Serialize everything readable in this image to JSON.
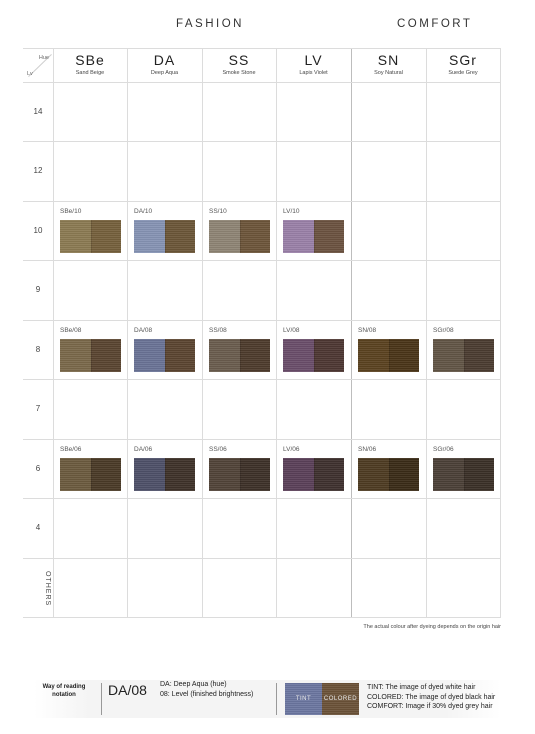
{
  "headers": {
    "fashion": "FASHION",
    "comfort": "COMFORT"
  },
  "corner": {
    "hue": "Hue",
    "lv": "Lv"
  },
  "columns": [
    {
      "code": "SBe",
      "name": "Sand Beige"
    },
    {
      "code": "DA",
      "name": "Deep Aqua"
    },
    {
      "code": "SS",
      "name": "Smoke Stone"
    },
    {
      "code": "LV",
      "name": "Lapis Violet"
    },
    {
      "code": "SN",
      "name": "Soy Natural"
    },
    {
      "code": "SGr",
      "name": "Suede Grey"
    }
  ],
  "levels": [
    "14",
    "12",
    "10",
    "9",
    "8",
    "7",
    "6",
    "4",
    "OTHERS"
  ],
  "swatches": {
    "sbe_10": {
      "label": "SBe/10",
      "tint": "#8b7a52",
      "colored": "#75603c"
    },
    "da_10": {
      "label": "DA/10",
      "tint": "#8693b4",
      "colored": "#6c5638"
    },
    "ss_10": {
      "label": "SS/10",
      "tint": "#8e8474",
      "colored": "#6d553a"
    },
    "lv_10": {
      "label": "LV/10",
      "tint": "#9a80a8",
      "colored": "#6b5240"
    },
    "sbe_08": {
      "label": "SBe/08",
      "tint": "#7a684a",
      "colored": "#5a4530"
    },
    "da_08": {
      "label": "DA/08",
      "tint": "#6a7396",
      "colored": "#5b4530"
    },
    "ss_08": {
      "label": "SS/08",
      "tint": "#6a5c4e",
      "colored": "#4d3b2c"
    },
    "lv_08": {
      "label": "LV/08",
      "tint": "#6a4d6a",
      "colored": "#4d3733"
    },
    "sn_08": {
      "label": "SN/08",
      "tint": "#5b4220",
      "colored": "#4a3518"
    },
    "sgr_08": {
      "label": "SGr/08",
      "tint": "#625546",
      "colored": "#4b3c30"
    },
    "sbe_06": {
      "label": "SBe/06",
      "tint": "#6c5a3e",
      "colored": "#4a3a27"
    },
    "da_06": {
      "label": "DA/06",
      "tint": "#4e5068",
      "colored": "#3e3129"
    },
    "ss_06": {
      "label": "SS/06",
      "tint": "#514338",
      "colored": "#3d3028"
    },
    "lv_06": {
      "label": "LV/06",
      "tint": "#5a4058",
      "colored": "#3e302e"
    },
    "sn_06": {
      "label": "SN/06",
      "tint": "#4e3b22",
      "colored": "#3a2b17"
    },
    "sgr_06": {
      "label": "SGr/06",
      "tint": "#4b4037",
      "colored": "#3a2f27"
    }
  },
  "note": "The actual colour after dyeing depends on the origin hair",
  "legend": {
    "title": "Way of reading notation",
    "code": "DA/08",
    "desc_hue": "DA: Deep Aqua (hue)",
    "desc_level": "08: Level (finished brightness)",
    "tint_label": "TINT",
    "colored_label": "COLORED",
    "tint_color": "#6c76a0",
    "colored_color": "#6b5238",
    "line_tint": "TINT: The image of dyed white hair",
    "line_colored": "COLORED: The image of dyed black hair",
    "line_comfort": "COMFORT: Image if 30% dyed grey hair"
  }
}
